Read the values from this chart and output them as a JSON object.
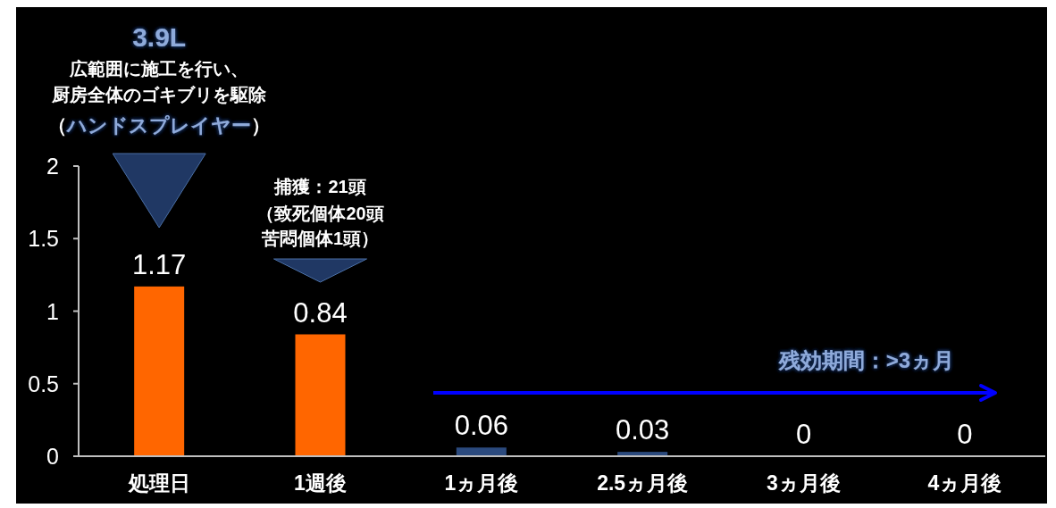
{
  "chart_data": {
    "type": "bar",
    "categories": [
      "処理日",
      "1週後",
      "1ヵ月後",
      "2.5ヵ月後",
      "3ヵ月後",
      "4ヵ月後"
    ],
    "values": [
      1.17,
      0.84,
      0.06,
      0.03,
      0,
      0
    ],
    "colors": [
      "#ff6600",
      "#ff6600",
      "#2b4a7e",
      "#2b4a7e",
      "#2b4a7e",
      "#2b4a7e"
    ],
    "ylim": [
      0,
      2
    ],
    "yticks": [
      0,
      0.5,
      1,
      1.5,
      2
    ],
    "grid": false,
    "data_labels": true,
    "annotations": [
      "3.9L",
      "広範囲に施工を行い、",
      "厨房全体のゴキブリを駆除",
      "（ハンドスプレイヤー）",
      "捕獲：21頭",
      "（致死個体20頭",
      "苦悶個体1頭）",
      "残効期間：>3ヵ月"
    ]
  }
}
